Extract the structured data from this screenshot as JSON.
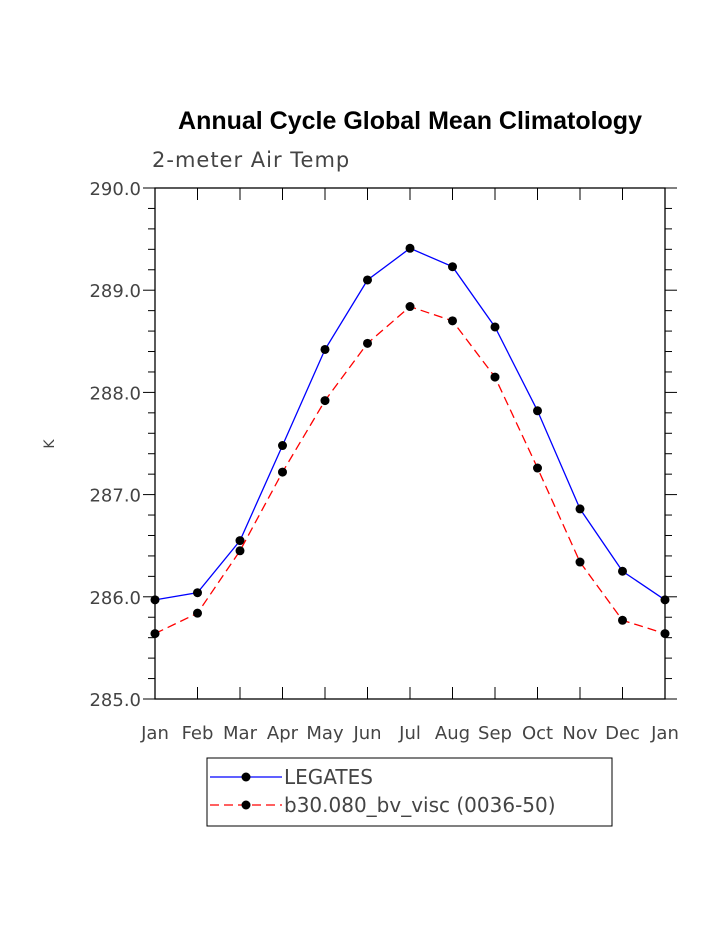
{
  "chart_data": {
    "type": "line",
    "title": "Annual Cycle Global Mean Climatology",
    "subtitle": "2-meter Air Temp",
    "ylabel": "K",
    "xlabel": "",
    "categories": [
      "Jan",
      "Feb",
      "Mar",
      "Apr",
      "May",
      "Jun",
      "Jul",
      "Aug",
      "Sep",
      "Oct",
      "Nov",
      "Dec",
      "Jan"
    ],
    "ylim": [
      285.0,
      290.0
    ],
    "yticks": [
      "285.0",
      "286.0",
      "287.0",
      "288.0",
      "289.0",
      "290.0"
    ],
    "legend_position": "bottom",
    "grid": false,
    "series": [
      {
        "name": "LEGATES",
        "color": "#0000ff",
        "line_style": "solid",
        "marker": "filled-circle",
        "values": [
          285.97,
          286.04,
          286.55,
          287.48,
          288.42,
          289.1,
          289.41,
          289.23,
          288.64,
          287.82,
          286.86,
          286.25,
          285.97
        ]
      },
      {
        "name": "b30.080_bv_visc (0036-50)",
        "color": "#ff0000",
        "line_style": "dashed",
        "marker": "filled-circle",
        "values": [
          285.64,
          285.84,
          286.45,
          287.22,
          287.92,
          288.48,
          288.84,
          288.7,
          288.15,
          287.26,
          286.34,
          285.77,
          285.64
        ]
      }
    ]
  }
}
